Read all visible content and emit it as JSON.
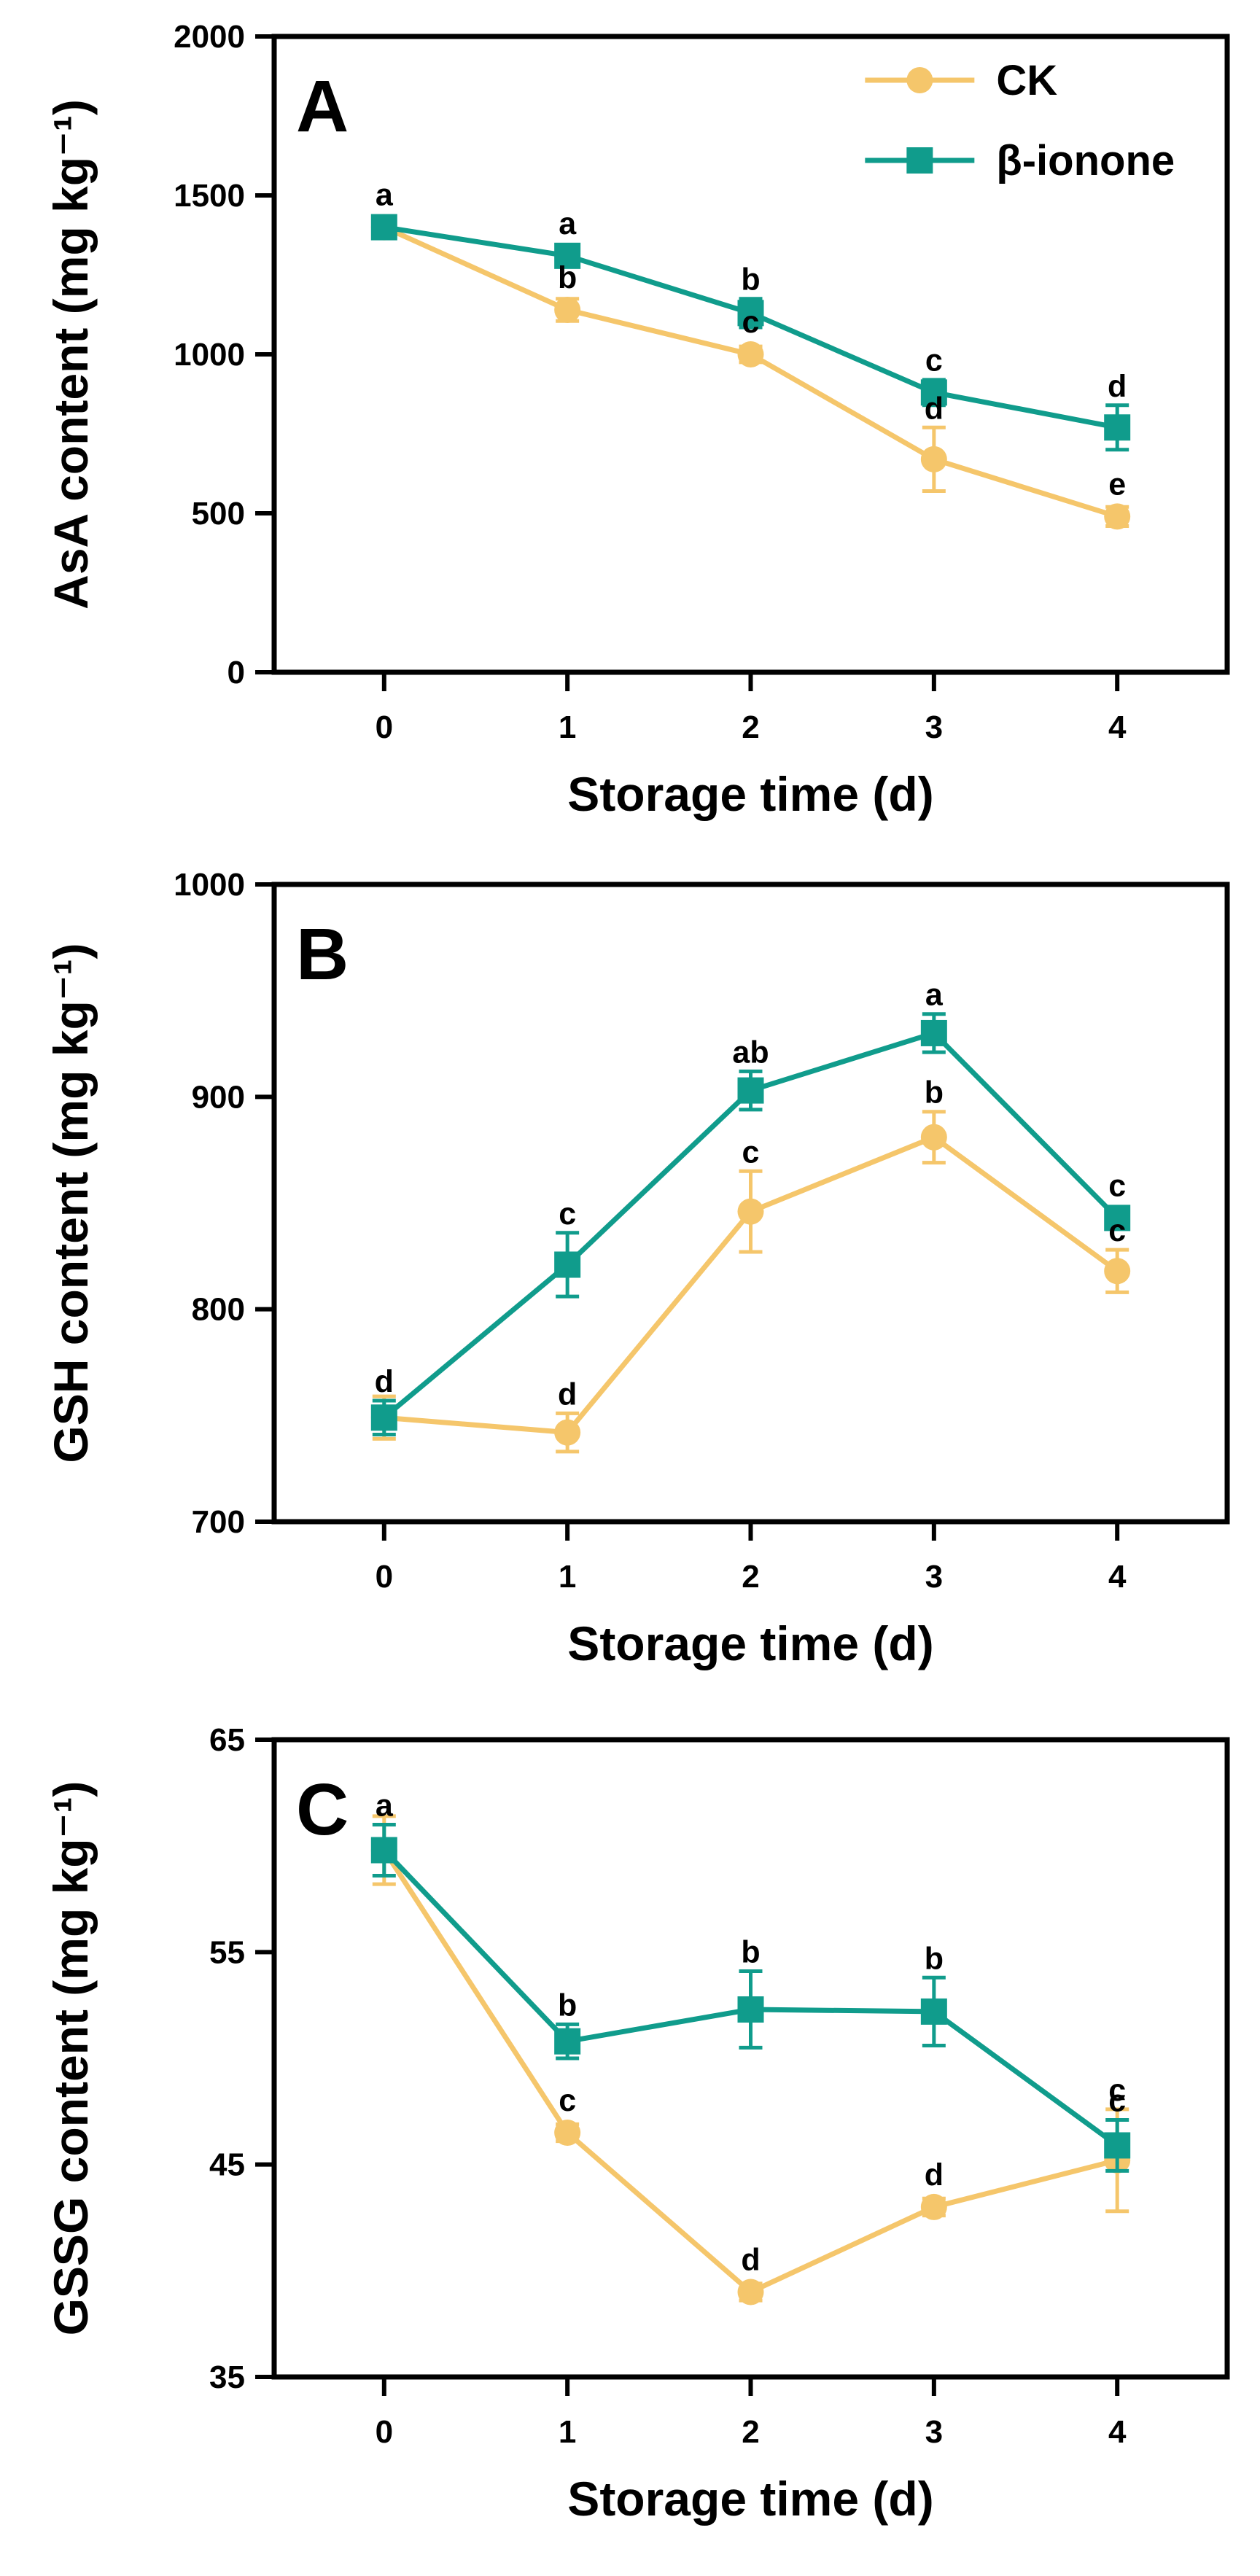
{
  "chart_data": [
    {
      "type": "line",
      "panel_label": "A",
      "xlabel": "Storage time (d)",
      "ylabel": "AsA content (mg kg⁻¹)",
      "xlim": [
        -0.6,
        4.6
      ],
      "ylim": [
        0,
        2000
      ],
      "x": [
        0,
        1,
        2,
        3,
        4
      ],
      "xticks": [
        "0",
        "1",
        "2",
        "3",
        "4"
      ],
      "yticks": [
        "0",
        "500",
        "1000",
        "1500",
        "2000"
      ],
      "yticks_values": [
        0,
        500,
        1000,
        1500,
        2000
      ],
      "grid": false,
      "legend": "top-right",
      "series": [
        {
          "name": "CK",
          "color": "#F5C66B",
          "marker": "circle",
          "values": [
            1400,
            1140,
            1000,
            670,
            490
          ],
          "errors": [
            25,
            35,
            25,
            100,
            30
          ],
          "sig": [
            "",
            "b",
            "c",
            "d",
            "e"
          ]
        },
        {
          "name": "β-ionone",
          "color": "#109C8C",
          "marker": "square",
          "values": [
            1400,
            1310,
            1130,
            880,
            770
          ],
          "errors": [
            20,
            30,
            45,
            40,
            70
          ],
          "sig": [
            "a",
            "a",
            "b",
            "c",
            "d"
          ]
        }
      ]
    },
    {
      "type": "line",
      "panel_label": "B",
      "xlabel": "Storage time (d)",
      "ylabel": "GSH content (mg kg⁻¹)",
      "xlim": [
        -0.6,
        4.6
      ],
      "ylim": [
        700,
        1000
      ],
      "x": [
        0,
        1,
        2,
        3,
        4
      ],
      "xticks": [
        "0",
        "1",
        "2",
        "3",
        "4"
      ],
      "yticks": [
        "700",
        "800",
        "900",
        "1000"
      ],
      "yticks_values": [
        700,
        800,
        900,
        1000
      ],
      "grid": false,
      "series": [
        {
          "name": "CK",
          "color": "#F5C66B",
          "marker": "circle",
          "values": [
            749,
            742,
            846,
            881,
            818
          ],
          "errors": [
            10,
            9,
            19,
            12,
            10
          ],
          "sig": [
            "",
            "d",
            "c",
            "b",
            "c"
          ]
        },
        {
          "name": "β-ionone",
          "color": "#109C8C",
          "marker": "square",
          "values": [
            749,
            821,
            903,
            930,
            843
          ],
          "errors": [
            8,
            15,
            9,
            9,
            4
          ],
          "sig": [
            "d",
            "c",
            "ab",
            "a",
            "c"
          ]
        }
      ]
    },
    {
      "type": "line",
      "panel_label": "C",
      "xlabel": "Storage time (d)",
      "ylabel": "GSSG content (mg kg⁻¹)",
      "xlim": [
        -0.6,
        4.6
      ],
      "ylim": [
        35,
        65
      ],
      "x": [
        0,
        1,
        2,
        3,
        4
      ],
      "xticks": [
        "0",
        "1",
        "2",
        "3",
        "4"
      ],
      "yticks": [
        "35",
        "45",
        "55",
        "65"
      ],
      "yticks_values": [
        35,
        45,
        55,
        65
      ],
      "grid": false,
      "series": [
        {
          "name": "CK",
          "color": "#F5C66B",
          "marker": "circle",
          "values": [
            59.8,
            46.5,
            39.0,
            43.0,
            45.2
          ],
          "errors": [
            1.6,
            0.4,
            0.4,
            0.4,
            2.4
          ],
          "sig": [
            "",
            "c",
            "d",
            "d",
            "c"
          ]
        },
        {
          "name": "β-ionone",
          "color": "#109C8C",
          "marker": "square",
          "values": [
            59.8,
            50.8,
            52.3,
            52.2,
            45.9
          ],
          "errors": [
            1.2,
            0.8,
            1.8,
            1.6,
            1.2
          ],
          "sig": [
            "a",
            "b",
            "b",
            "b",
            "c"
          ]
        }
      ]
    }
  ]
}
